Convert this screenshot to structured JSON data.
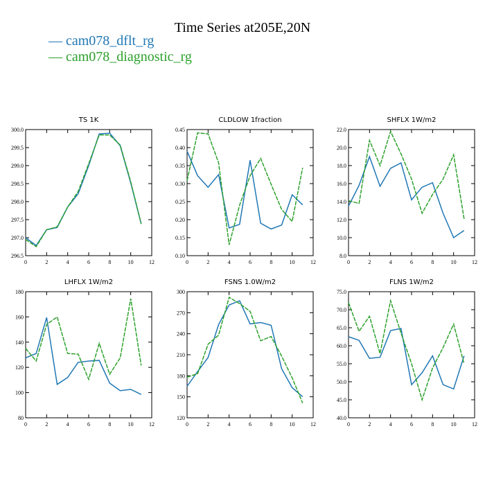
{
  "title": "Time Series at205E,20N",
  "legend": [
    {
      "label": "cam078_dflt_rg",
      "color": "#1f77b4"
    },
    {
      "label": "cam078_diagnostic_rg",
      "color": "#2ca02c"
    }
  ],
  "chart_data": [
    {
      "type": "line",
      "title": "TS   1K",
      "x": [
        0,
        1,
        2,
        3,
        4,
        5,
        6,
        7,
        8,
        9,
        10,
        11
      ],
      "xlim": [
        0,
        12
      ],
      "xticks": [
        0,
        2,
        4,
        6,
        8,
        10,
        12
      ],
      "ylim": [
        296.5,
        300.0
      ],
      "yticks": [
        "296.5",
        "297.0",
        "297.5",
        "298.0",
        "298.5",
        "299.0",
        "299.5",
        "300.0"
      ],
      "series": [
        {
          "name": "cam078_dflt_rg",
          "values": [
            297.0,
            296.78,
            297.22,
            297.28,
            297.85,
            298.22,
            299.0,
            299.88,
            299.9,
            299.55,
            298.52,
            297.38
          ]
        },
        {
          "name": "cam078_diagnostic_rg",
          "values": [
            296.95,
            296.75,
            297.22,
            297.3,
            297.85,
            298.28,
            299.05,
            299.85,
            299.85,
            299.57,
            298.55,
            297.38
          ]
        }
      ]
    },
    {
      "type": "line",
      "title": "CLDLOW   1fraction",
      "x": [
        0,
        1,
        2,
        3,
        4,
        5,
        6,
        7,
        8,
        9,
        10,
        11
      ],
      "xlim": [
        0,
        12
      ],
      "xticks": [
        0,
        2,
        4,
        6,
        8,
        10,
        12
      ],
      "ylim": [
        0.1,
        0.45
      ],
      "yticks": [
        "0.10",
        "0.15",
        "0.20",
        "0.25",
        "0.30",
        "0.35",
        "0.40",
        "0.45"
      ],
      "series": [
        {
          "name": "cam078_dflt_rg",
          "values": [
            0.39,
            0.322,
            0.29,
            0.325,
            0.177,
            0.187,
            0.365,
            0.19,
            0.174,
            0.185,
            0.269,
            0.241
          ]
        },
        {
          "name": "cam078_diagnostic_rg",
          "values": [
            0.308,
            0.441,
            0.438,
            0.358,
            0.13,
            0.24,
            0.322,
            0.37,
            0.298,
            0.228,
            0.195,
            0.344
          ]
        }
      ]
    },
    {
      "type": "line",
      "title": "SHFLX   1W/m2",
      "x": [
        0,
        1,
        2,
        3,
        4,
        5,
        6,
        7,
        8,
        9,
        10,
        11
      ],
      "xlim": [
        0,
        12
      ],
      "xticks": [
        0,
        2,
        4,
        6,
        8,
        10,
        12
      ],
      "ylim": [
        8.0,
        22.0
      ],
      "yticks": [
        "8.0",
        "10.0",
        "12.0",
        "14.0",
        "16.0",
        "18.0",
        "20.0",
        "22.0"
      ],
      "series": [
        {
          "name": "cam078_dflt_rg",
          "values": [
            13.5,
            15.8,
            19.0,
            15.7,
            17.7,
            18.3,
            14.2,
            15.6,
            16.1,
            12.7,
            10.0,
            10.8
          ]
        },
        {
          "name": "cam078_diagnostic_rg",
          "values": [
            14.1,
            13.8,
            20.8,
            18.0,
            21.8,
            19.3,
            16.5,
            12.7,
            14.8,
            16.5,
            19.2,
            12.1
          ]
        }
      ]
    },
    {
      "type": "line",
      "title": "LHFLX   1W/m2",
      "x": [
        0,
        1,
        2,
        3,
        4,
        5,
        6,
        7,
        8,
        9,
        10,
        11
      ],
      "xlim": [
        0,
        12
      ],
      "xticks": [
        0,
        2,
        4,
        6,
        8,
        10,
        12
      ],
      "ylim": [
        80,
        180
      ],
      "yticks": [
        "80",
        "100",
        "120",
        "140",
        "160",
        "180"
      ],
      "series": [
        {
          "name": "cam078_dflt_rg",
          "values": [
            127.5,
            131,
            159.5,
            106.5,
            112,
            124,
            125,
            125.5,
            107.5,
            101.5,
            102.5,
            98.5
          ]
        },
        {
          "name": "cam078_diagnostic_rg",
          "values": [
            135,
            125,
            154,
            160,
            131,
            130.5,
            110.5,
            139,
            114.5,
            127.5,
            174.5,
            121.5
          ]
        }
      ]
    },
    {
      "type": "line",
      "title": "FSNS   1.0W/m2",
      "x": [
        0,
        1,
        2,
        3,
        4,
        5,
        6,
        7,
        8,
        9,
        10,
        11
      ],
      "xlim": [
        0,
        12
      ],
      "xticks": [
        0,
        2,
        4,
        6,
        8,
        10,
        12
      ],
      "ylim": [
        120,
        300
      ],
      "yticks": [
        "120",
        "150",
        "180",
        "210",
        "240",
        "270",
        "300"
      ],
      "series": [
        {
          "name": "cam078_dflt_rg",
          "values": [
            165,
            186,
            206,
            253,
            281,
            287,
            254,
            256,
            252,
            190,
            163,
            150
          ]
        },
        {
          "name": "cam078_diagnostic_rg",
          "values": [
            178,
            183,
            225,
            238,
            292,
            283,
            272,
            230,
            236,
            208,
            177,
            141
          ]
        }
      ]
    },
    {
      "type": "line",
      "title": "FLNS   1W/m2",
      "x": [
        0,
        1,
        2,
        3,
        4,
        5,
        6,
        7,
        8,
        9,
        10,
        11
      ],
      "xlim": [
        0,
        12
      ],
      "xticks": [
        0,
        2,
        4,
        6,
        8,
        10,
        12
      ],
      "ylim": [
        40.0,
        75.0
      ],
      "yticks": [
        "40.0",
        "45.0",
        "50.0",
        "55.0",
        "60.0",
        "65.0",
        "70.0",
        "75.0"
      ],
      "series": [
        {
          "name": "cam078_dflt_rg",
          "values": [
            62.5,
            61.5,
            56.5,
            56.8,
            64.2,
            64.8,
            49.2,
            52.5,
            57.2,
            49.2,
            48.0,
            57.2
          ]
        },
        {
          "name": "cam078_diagnostic_rg",
          "values": [
            72.0,
            64.0,
            68.2,
            57.8,
            72.5,
            63.5,
            55.0,
            45.0,
            53.8,
            59.5,
            66.0,
            55.0
          ]
        }
      ]
    }
  ]
}
